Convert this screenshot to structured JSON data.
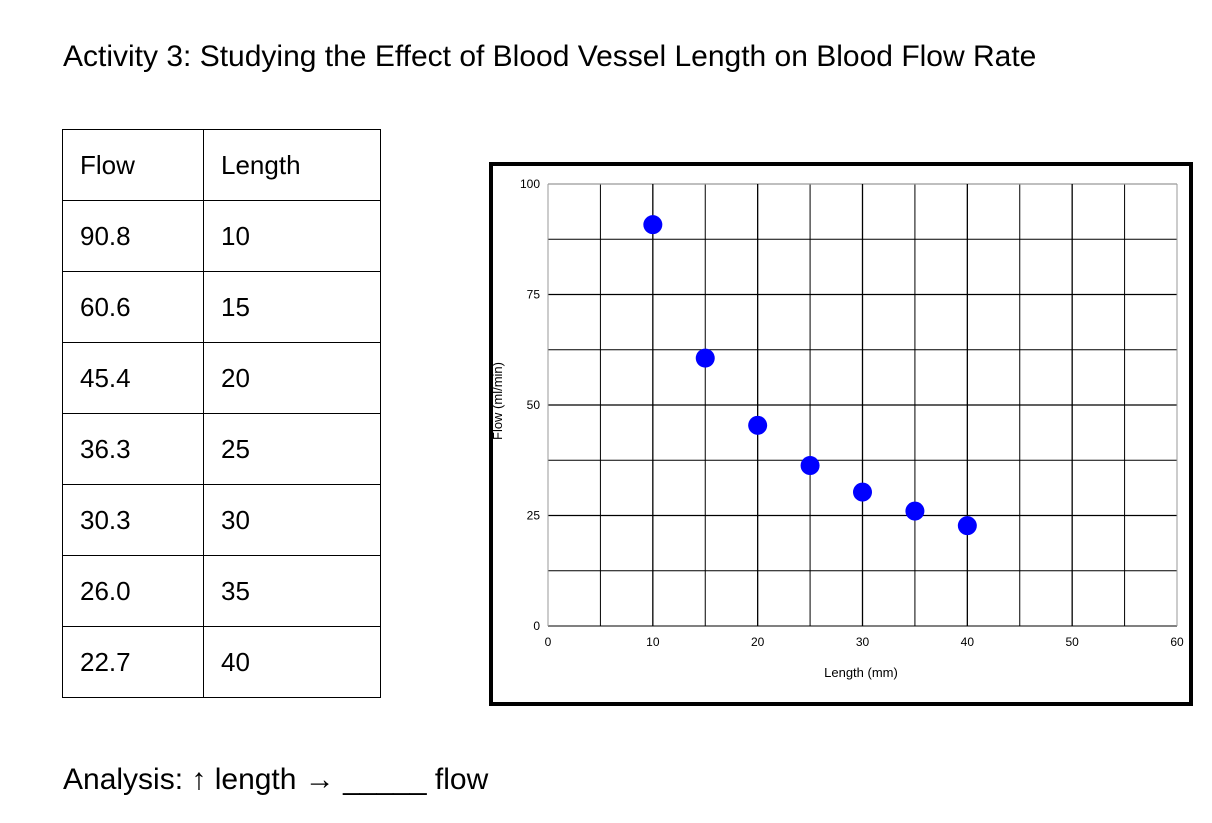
{
  "title": "Activity 3: Studying the Effect of Blood Vessel Length on Blood Flow Rate",
  "table": {
    "headers": [
      "Flow",
      "Length"
    ],
    "rows": [
      [
        "90.8",
        "10"
      ],
      [
        "60.6",
        "15"
      ],
      [
        "45.4",
        "20"
      ],
      [
        "36.3",
        "25"
      ],
      [
        "30.3",
        "30"
      ],
      [
        "26.0",
        "35"
      ],
      [
        "22.7",
        "40"
      ]
    ]
  },
  "chart_data": {
    "type": "scatter",
    "x": [
      10,
      15,
      20,
      25,
      30,
      35,
      40
    ],
    "y": [
      90.8,
      60.6,
      45.4,
      36.3,
      30.3,
      26.0,
      22.7
    ],
    "xlabel": "Length (mm)",
    "ylabel": "Flow (ml/min)",
    "xlim": [
      0,
      60
    ],
    "ylim": [
      0,
      100
    ],
    "xticks": [
      0,
      10,
      20,
      30,
      40,
      50,
      60
    ],
    "yticks": [
      0,
      25,
      50,
      75,
      100
    ],
    "x_minor_gridlines": [
      5,
      15,
      25,
      35,
      45,
      55
    ],
    "y_minor_gridlines": [
      12.5,
      37.5,
      62.5,
      87.5
    ],
    "grid": true,
    "marker_color": "#0000ff",
    "grid_color": "#000000"
  },
  "analysis": "Analysis: ↑ length → _____ flow"
}
